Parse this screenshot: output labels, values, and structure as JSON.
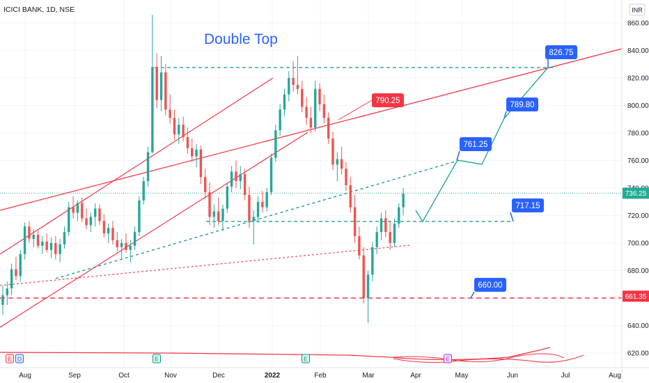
{
  "header": {
    "symbol_line": "ICICI BANK, 1D, NSE",
    "currency_button": "INR"
  },
  "annotations": {
    "title": "Double Top"
  },
  "colors": {
    "up": "#26a69a",
    "down": "#ef5350",
    "trend_red": "#f23645",
    "dash_green": "#089981",
    "label_blue": "#2962ff",
    "label_red": "#f23645",
    "current_price": "#22ab94"
  },
  "chart_data": {
    "type": "candlestick",
    "y_axis": {
      "ticks": [
        "860.00",
        "840.00",
        "820.00",
        "800.00",
        "780.00",
        "760.00",
        "740.00",
        "720.00",
        "700.00",
        "680.00",
        "660.00",
        "640.00",
        "620.00"
      ],
      "range": [
        611,
        868
      ]
    },
    "x_axis": {
      "labels": [
        "Aug",
        "Sep",
        "Oct",
        "Nov",
        "Dec",
        "2022",
        "Feb",
        "Mar",
        "Apr",
        "May",
        "Jun",
        "Jul",
        "Aug"
      ]
    },
    "current_price": {
      "value": 736.25,
      "label": "736.25"
    },
    "right_axis_marker": {
      "value": 661.35,
      "label": "661.35"
    },
    "candles": [
      {
        "o": 655,
        "h": 669,
        "l": 648,
        "c": 662
      },
      {
        "o": 662,
        "h": 672,
        "l": 655,
        "c": 667
      },
      {
        "o": 667,
        "h": 685,
        "l": 662,
        "c": 681
      },
      {
        "o": 681,
        "h": 690,
        "l": 673,
        "c": 676
      },
      {
        "o": 676,
        "h": 695,
        "l": 672,
        "c": 692
      },
      {
        "o": 692,
        "h": 715,
        "l": 688,
        "c": 712
      },
      {
        "o": 712,
        "h": 716,
        "l": 700,
        "c": 703
      },
      {
        "o": 703,
        "h": 710,
        "l": 697,
        "c": 706
      },
      {
        "o": 706,
        "h": 709,
        "l": 696,
        "c": 698
      },
      {
        "o": 698,
        "h": 705,
        "l": 692,
        "c": 701
      },
      {
        "o": 701,
        "h": 707,
        "l": 693,
        "c": 695
      },
      {
        "o": 695,
        "h": 704,
        "l": 689,
        "c": 700
      },
      {
        "o": 700,
        "h": 705,
        "l": 688,
        "c": 692
      },
      {
        "o": 692,
        "h": 703,
        "l": 686,
        "c": 699
      },
      {
        "o": 699,
        "h": 712,
        "l": 696,
        "c": 708
      },
      {
        "o": 708,
        "h": 730,
        "l": 705,
        "c": 726
      },
      {
        "o": 726,
        "h": 734,
        "l": 718,
        "c": 722
      },
      {
        "o": 722,
        "h": 731,
        "l": 716,
        "c": 729
      },
      {
        "o": 729,
        "h": 733,
        "l": 715,
        "c": 718
      },
      {
        "o": 718,
        "h": 725,
        "l": 710,
        "c": 713
      },
      {
        "o": 713,
        "h": 722,
        "l": 708,
        "c": 719
      },
      {
        "o": 719,
        "h": 729,
        "l": 712,
        "c": 725
      },
      {
        "o": 725,
        "h": 728,
        "l": 713,
        "c": 716
      },
      {
        "o": 716,
        "h": 721,
        "l": 704,
        "c": 707
      },
      {
        "o": 707,
        "h": 714,
        "l": 700,
        "c": 711
      },
      {
        "o": 711,
        "h": 716,
        "l": 699,
        "c": 702
      },
      {
        "o": 702,
        "h": 708,
        "l": 694,
        "c": 697
      },
      {
        "o": 697,
        "h": 703,
        "l": 688,
        "c": 700
      },
      {
        "o": 700,
        "h": 707,
        "l": 693,
        "c": 695
      },
      {
        "o": 695,
        "h": 702,
        "l": 686,
        "c": 698
      },
      {
        "o": 698,
        "h": 712,
        "l": 695,
        "c": 708
      },
      {
        "o": 708,
        "h": 734,
        "l": 705,
        "c": 731
      },
      {
        "o": 731,
        "h": 748,
        "l": 728,
        "c": 745
      },
      {
        "o": 745,
        "h": 770,
        "l": 741,
        "c": 766
      },
      {
        "o": 766,
        "h": 866,
        "l": 765,
        "c": 828
      },
      {
        "o": 828,
        "h": 838,
        "l": 798,
        "c": 804
      },
      {
        "o": 804,
        "h": 836,
        "l": 796,
        "c": 824
      },
      {
        "o": 824,
        "h": 830,
        "l": 793,
        "c": 797
      },
      {
        "o": 797,
        "h": 808,
        "l": 787,
        "c": 791
      },
      {
        "o": 791,
        "h": 797,
        "l": 775,
        "c": 779
      },
      {
        "o": 779,
        "h": 791,
        "l": 772,
        "c": 786
      },
      {
        "o": 786,
        "h": 792,
        "l": 774,
        "c": 777
      },
      {
        "o": 777,
        "h": 784,
        "l": 765,
        "c": 769
      },
      {
        "o": 769,
        "h": 776,
        "l": 759,
        "c": 763
      },
      {
        "o": 763,
        "h": 772,
        "l": 755,
        "c": 768
      },
      {
        "o": 768,
        "h": 771,
        "l": 743,
        "c": 748
      },
      {
        "o": 748,
        "h": 754,
        "l": 732,
        "c": 737
      },
      {
        "o": 737,
        "h": 744,
        "l": 713,
        "c": 719
      },
      {
        "o": 719,
        "h": 728,
        "l": 711,
        "c": 723
      },
      {
        "o": 723,
        "h": 733,
        "l": 713,
        "c": 716
      },
      {
        "o": 716,
        "h": 728,
        "l": 709,
        "c": 725
      },
      {
        "o": 725,
        "h": 744,
        "l": 722,
        "c": 741
      },
      {
        "o": 741,
        "h": 756,
        "l": 737,
        "c": 752
      },
      {
        "o": 752,
        "h": 760,
        "l": 740,
        "c": 745
      },
      {
        "o": 745,
        "h": 756,
        "l": 739,
        "c": 750
      },
      {
        "o": 750,
        "h": 754,
        "l": 731,
        "c": 735
      },
      {
        "o": 735,
        "h": 741,
        "l": 711,
        "c": 716
      },
      {
        "o": 716,
        "h": 724,
        "l": 699,
        "c": 719
      },
      {
        "o": 719,
        "h": 734,
        "l": 715,
        "c": 730
      },
      {
        "o": 730,
        "h": 738,
        "l": 722,
        "c": 726
      },
      {
        "o": 726,
        "h": 740,
        "l": 723,
        "c": 737
      },
      {
        "o": 737,
        "h": 765,
        "l": 735,
        "c": 762
      },
      {
        "o": 762,
        "h": 786,
        "l": 759,
        "c": 782
      },
      {
        "o": 782,
        "h": 801,
        "l": 778,
        "c": 797
      },
      {
        "o": 797,
        "h": 812,
        "l": 792,
        "c": 808
      },
      {
        "o": 808,
        "h": 825,
        "l": 803,
        "c": 820
      },
      {
        "o": 820,
        "h": 832,
        "l": 810,
        "c": 815
      },
      {
        "o": 815,
        "h": 836,
        "l": 808,
        "c": 812
      },
      {
        "o": 812,
        "h": 818,
        "l": 795,
        "c": 799
      },
      {
        "o": 799,
        "h": 806,
        "l": 786,
        "c": 791
      },
      {
        "o": 791,
        "h": 799,
        "l": 780,
        "c": 784
      },
      {
        "o": 784,
        "h": 818,
        "l": 781,
        "c": 812
      },
      {
        "o": 812,
        "h": 816,
        "l": 796,
        "c": 801
      },
      {
        "o": 801,
        "h": 808,
        "l": 787,
        "c": 791
      },
      {
        "o": 791,
        "h": 795,
        "l": 772,
        "c": 776
      },
      {
        "o": 776,
        "h": 781,
        "l": 753,
        "c": 757
      },
      {
        "o": 757,
        "h": 766,
        "l": 745,
        "c": 761
      },
      {
        "o": 761,
        "h": 770,
        "l": 750,
        "c": 754
      },
      {
        "o": 754,
        "h": 759,
        "l": 738,
        "c": 742
      },
      {
        "o": 742,
        "h": 748,
        "l": 722,
        "c": 726
      },
      {
        "o": 726,
        "h": 735,
        "l": 700,
        "c": 705
      },
      {
        "o": 705,
        "h": 712,
        "l": 688,
        "c": 691
      },
      {
        "o": 691,
        "h": 697,
        "l": 656,
        "c": 660
      },
      {
        "o": 660,
        "h": 680,
        "l": 642,
        "c": 677
      },
      {
        "o": 677,
        "h": 701,
        "l": 672,
        "c": 697
      },
      {
        "o": 697,
        "h": 712,
        "l": 692,
        "c": 708
      },
      {
        "o": 708,
        "h": 722,
        "l": 702,
        "c": 718
      },
      {
        "o": 718,
        "h": 724,
        "l": 704,
        "c": 708
      },
      {
        "o": 708,
        "h": 716,
        "l": 695,
        "c": 700
      },
      {
        "o": 700,
        "h": 718,
        "l": 697,
        "c": 714
      },
      {
        "o": 714,
        "h": 729,
        "l": 711,
        "c": 726
      },
      {
        "o": 726,
        "h": 740,
        "l": 720,
        "c": 736
      }
    ]
  }
}
